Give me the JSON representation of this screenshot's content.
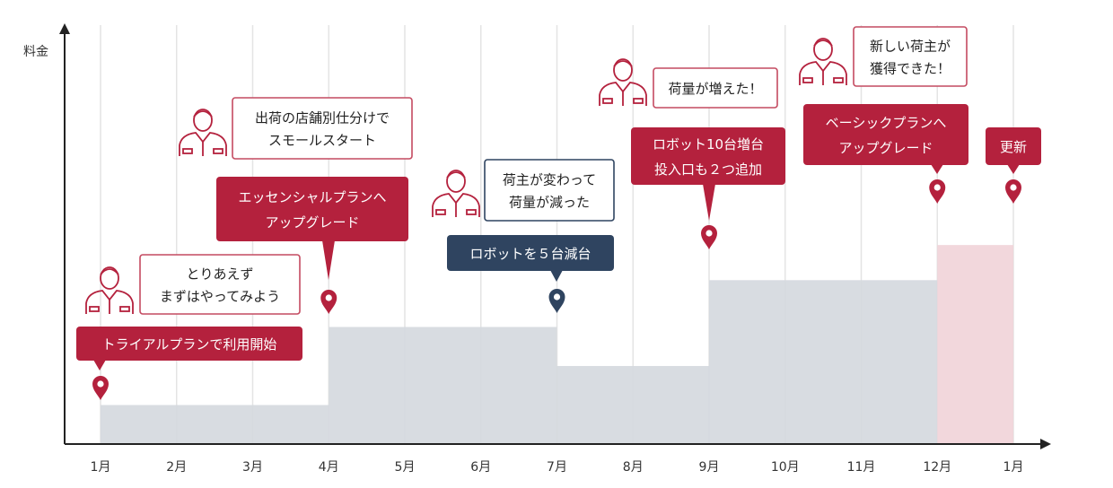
{
  "chart_data": {
    "type": "area",
    "ylabel": "料金",
    "xlabel": "",
    "categories": [
      "1月",
      "2月",
      "3月",
      "4月",
      "5月",
      "6月",
      "7月",
      "8月",
      "9月",
      "10月",
      "11月",
      "12月",
      "1月"
    ],
    "title": "",
    "grid": true,
    "legend": "none",
    "series": [
      {
        "style": "gray",
        "steps": [
          {
            "from": 0,
            "to": 3,
            "value": 1
          },
          {
            "from": 3,
            "to": 6,
            "value": 3
          },
          {
            "from": 6,
            "to": 8,
            "value": 2
          },
          {
            "from": 8,
            "to": 11,
            "value": 4.2
          }
        ]
      },
      {
        "style": "pink",
        "steps": [
          {
            "from": 11,
            "to": 12,
            "value": 5.1
          }
        ]
      }
    ],
    "events": [
      {
        "month_index": 0,
        "label": "トライアルプランで利用開始",
        "kind": "plan",
        "thought": [
          "とりあえず",
          "まずはやってみよう"
        ]
      },
      {
        "month_index": 3,
        "label": [
          "エッセンシャルプランへ",
          "アップグレード"
        ],
        "kind": "plan",
        "thought": [
          "出荷の店舗別仕分けで",
          "スモールスタート"
        ]
      },
      {
        "month_index": 6,
        "label": "ロボットを５台減台",
        "kind": "reduce",
        "thought": [
          "荷主が変わって",
          "荷量が減った"
        ]
      },
      {
        "month_index": 8,
        "label": [
          "ロボット10台増台",
          "投入口も２つ追加"
        ],
        "kind": "plan",
        "thought": [
          "荷量が増えた！"
        ]
      },
      {
        "month_index": 11,
        "label": [
          "ベーシックプランへ",
          "アップグレード"
        ],
        "kind": "plan",
        "thought": [
          "新しい荷主が",
          "獲得できた！"
        ]
      },
      {
        "month_index": 12,
        "label": "更新",
        "kind": "plan",
        "thought": []
      }
    ]
  },
  "colors": {
    "gray_fill": "#d5d9de",
    "pink_fill": "#f1d4d9",
    "red": "#b4213d",
    "navy": "#2f4460",
    "grid": "#e4e4e4",
    "axis": "#222222",
    "person": "#b4213d",
    "outline": "#c44a60",
    "thought_outline_blue": "#2f4460"
  },
  "icons": {
    "pin": "map-pin-icon",
    "person": "person-icon"
  }
}
